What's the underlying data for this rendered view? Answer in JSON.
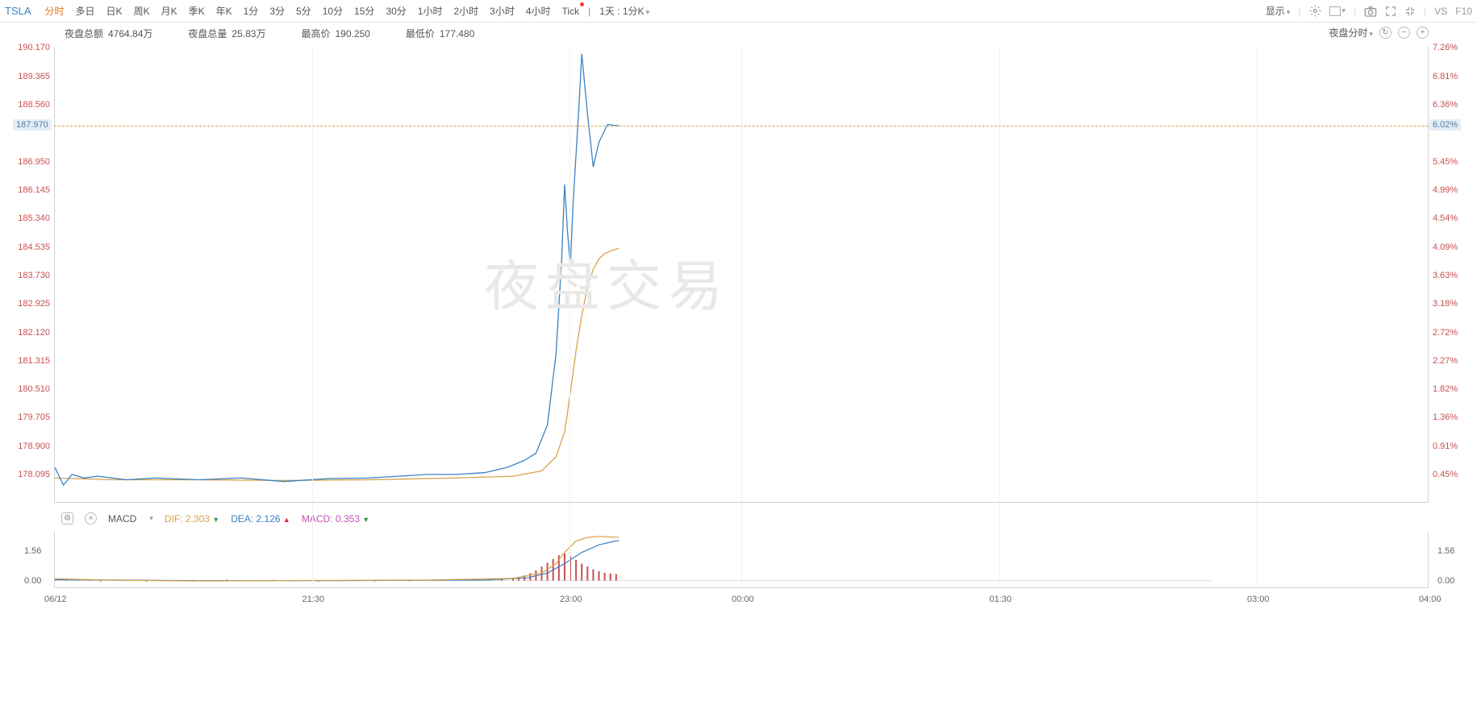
{
  "ticker": "TSLA",
  "timeframes": {
    "items": [
      "分时",
      "多日",
      "日K",
      "周K",
      "月K",
      "季K",
      "年K",
      "1分",
      "3分",
      "5分",
      "10分",
      "15分",
      "30分",
      "1小时",
      "2小时",
      "3小时",
      "4小时",
      "Tick"
    ],
    "active_index": 0,
    "dot_index": 17,
    "extra_label": "1天 : 1分K"
  },
  "toolbar_right": {
    "display_label": "显示",
    "vs_label": "VS",
    "f10_label": "F10"
  },
  "stats": {
    "vol_amount_label": "夜盘总额",
    "vol_amount_value": "4764.84万",
    "vol_qty_label": "夜盘总量",
    "vol_qty_value": "25.83万",
    "high_label": "最高价",
    "high_value": "190.250",
    "low_label": "最低价",
    "low_value": "177.480",
    "mode_label": "夜盘分时"
  },
  "watermark_text": "夜盘交易",
  "price_chart": {
    "type": "line",
    "ylim": [
      177.3,
      190.2
    ],
    "left_ticks": [
      190.17,
      189.365,
      188.56,
      187.97,
      186.95,
      186.145,
      185.34,
      184.535,
      183.73,
      182.925,
      182.12,
      181.315,
      180.51,
      179.705,
      178.9,
      178.095
    ],
    "right_ticks": [
      "7.26%",
      "6.81%",
      "6.36%",
      "6.02%",
      "5.45%",
      "4.99%",
      "4.54%",
      "4.09%",
      "3.63%",
      "3.18%",
      "2.72%",
      "2.27%",
      "1.82%",
      "1.36%",
      "0.91%",
      "0.45%"
    ],
    "dash_value": 187.97,
    "dash_pct": "6.02%",
    "x_domain_minutes": [
      0,
      480
    ],
    "x_data_end_minute": 197,
    "x_ticks": [
      {
        "minute": 0,
        "label": "06/12"
      },
      {
        "minute": 90,
        "label": "21:30"
      },
      {
        "minute": 180,
        "label": "23:00"
      },
      {
        "minute": 240,
        "label": "00:00"
      },
      {
        "minute": 330,
        "label": "01:30"
      },
      {
        "minute": 420,
        "label": "03:00"
      },
      {
        "minute": 480,
        "label": "04:00"
      }
    ],
    "line1_color": "#3b82c4",
    "line2_color": "#d6a24a",
    "grid_color": "#f0f0f0",
    "axis_label_color": "#c94f4f",
    "line1": [
      [
        0,
        178.3
      ],
      [
        3,
        177.8
      ],
      [
        6,
        178.1
      ],
      [
        10,
        178.0
      ],
      [
        15,
        178.05
      ],
      [
        25,
        177.95
      ],
      [
        35,
        178.0
      ],
      [
        50,
        177.95
      ],
      [
        65,
        178.0
      ],
      [
        80,
        177.9
      ],
      [
        95,
        177.98
      ],
      [
        110,
        178.0
      ],
      [
        120,
        178.05
      ],
      [
        130,
        178.1
      ],
      [
        140,
        178.1
      ],
      [
        150,
        178.15
      ],
      [
        158,
        178.3
      ],
      [
        164,
        178.5
      ],
      [
        168,
        178.7
      ],
      [
        172,
        179.5
      ],
      [
        175,
        181.5
      ],
      [
        177,
        184.2
      ],
      [
        178,
        186.3
      ],
      [
        179,
        185.0
      ],
      [
        180,
        184.0
      ],
      [
        181,
        185.8
      ],
      [
        183,
        188.5
      ],
      [
        184,
        190.0
      ],
      [
        186,
        188.3
      ],
      [
        188,
        186.8
      ],
      [
        190,
        187.5
      ],
      [
        193,
        188.0
      ],
      [
        196,
        187.97
      ],
      [
        197,
        187.97
      ]
    ],
    "line2": [
      [
        0,
        178.0
      ],
      [
        20,
        177.95
      ],
      [
        50,
        177.95
      ],
      [
        80,
        177.93
      ],
      [
        110,
        177.95
      ],
      [
        140,
        178.0
      ],
      [
        160,
        178.05
      ],
      [
        170,
        178.2
      ],
      [
        175,
        178.6
      ],
      [
        178,
        179.3
      ],
      [
        180,
        180.4
      ],
      [
        182,
        181.6
      ],
      [
        184,
        182.6
      ],
      [
        186,
        183.4
      ],
      [
        188,
        183.9
      ],
      [
        190,
        184.2
      ],
      [
        192,
        184.35
      ],
      [
        195,
        184.45
      ],
      [
        197,
        184.5
      ]
    ]
  },
  "macd": {
    "title": "MACD",
    "dif_label": "DIF:",
    "dif_value": "2.303",
    "dif_arrow": "down",
    "dea_label": "DEA:",
    "dea_value": "2.126",
    "dea_arrow": "up",
    "macd_label": "MACD:",
    "macd_value": "0.353",
    "macd_arrow": "down",
    "ylim": [
      -0.4,
      2.6
    ],
    "left_ticks": [
      1.56,
      0.0
    ],
    "right_ticks": [
      1.56,
      0.0
    ],
    "dif_color": "#d6a24a",
    "dea_color": "#3b82c4",
    "hist_pos_color": "#c94f4f",
    "hist_neg_color": "#2e9e4f",
    "dif_line": [
      [
        0,
        0.1
      ],
      [
        20,
        0.02
      ],
      [
        50,
        -0.02
      ],
      [
        90,
        0.01
      ],
      [
        130,
        0.03
      ],
      [
        160,
        0.12
      ],
      [
        170,
        0.4
      ],
      [
        175,
        0.9
      ],
      [
        178,
        1.5
      ],
      [
        182,
        2.1
      ],
      [
        186,
        2.3
      ],
      [
        190,
        2.35
      ],
      [
        194,
        2.32
      ],
      [
        197,
        2.3
      ]
    ],
    "dea_line": [
      [
        0,
        0.05
      ],
      [
        50,
        0.0
      ],
      [
        100,
        0.0
      ],
      [
        150,
        0.03
      ],
      [
        165,
        0.15
      ],
      [
        172,
        0.4
      ],
      [
        178,
        0.9
      ],
      [
        184,
        1.5
      ],
      [
        190,
        1.9
      ],
      [
        195,
        2.08
      ],
      [
        197,
        2.13
      ]
    ],
    "hist": [
      [
        0,
        0.05
      ],
      [
        4,
        -0.03
      ],
      [
        8,
        0.04
      ],
      [
        12,
        0.02
      ],
      [
        16,
        -0.04
      ],
      [
        20,
        0.03
      ],
      [
        24,
        -0.02
      ],
      [
        28,
        0.03
      ],
      [
        32,
        -0.05
      ],
      [
        36,
        0.04
      ],
      [
        40,
        0.02
      ],
      [
        44,
        -0.03
      ],
      [
        48,
        0.04
      ],
      [
        52,
        -0.02
      ],
      [
        56,
        0.03
      ],
      [
        60,
        0.05
      ],
      [
        64,
        -0.04
      ],
      [
        68,
        0.03
      ],
      [
        72,
        -0.02
      ],
      [
        76,
        0.04
      ],
      [
        80,
        0.02
      ],
      [
        84,
        -0.03
      ],
      [
        88,
        0.04
      ],
      [
        92,
        -0.05
      ],
      [
        96,
        0.03
      ],
      [
        100,
        -0.02
      ],
      [
        104,
        0.04
      ],
      [
        108,
        0.03
      ],
      [
        112,
        -0.04
      ],
      [
        116,
        0.05
      ],
      [
        120,
        0.02
      ],
      [
        124,
        -0.03
      ],
      [
        128,
        0.04
      ],
      [
        132,
        -0.02
      ],
      [
        136,
        0.05
      ],
      [
        140,
        0.03
      ],
      [
        144,
        0.06
      ],
      [
        148,
        0.04
      ],
      [
        152,
        0.08
      ],
      [
        156,
        0.1
      ],
      [
        160,
        0.15
      ],
      [
        162,
        0.2
      ],
      [
        164,
        0.28
      ],
      [
        166,
        0.4
      ],
      [
        168,
        0.55
      ],
      [
        170,
        0.75
      ],
      [
        172,
        0.95
      ],
      [
        174,
        1.15
      ],
      [
        176,
        1.35
      ],
      [
        178,
        1.45
      ],
      [
        180,
        1.3
      ],
      [
        182,
        1.1
      ],
      [
        184,
        0.9
      ],
      [
        186,
        0.75
      ],
      [
        188,
        0.6
      ],
      [
        190,
        0.5
      ],
      [
        192,
        0.42
      ],
      [
        194,
        0.38
      ],
      [
        196,
        0.35
      ]
    ]
  }
}
